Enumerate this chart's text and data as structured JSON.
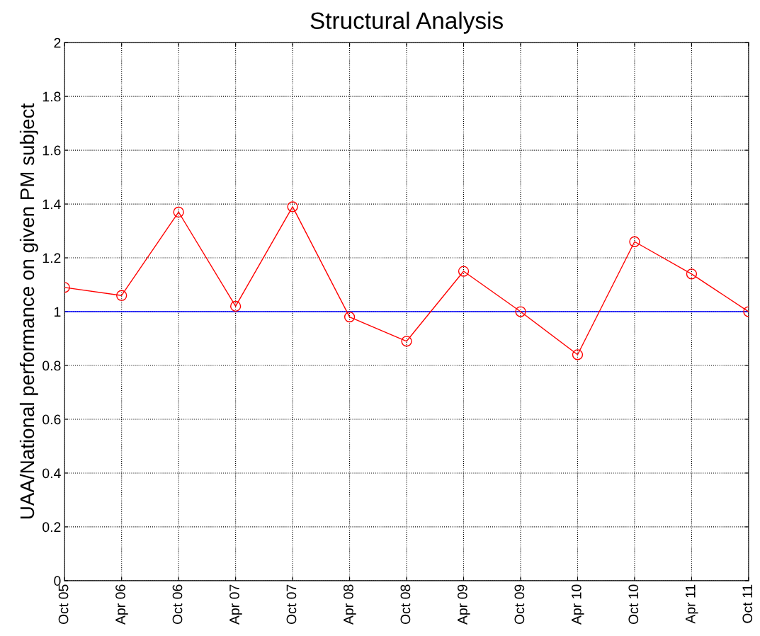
{
  "chart_data": {
    "type": "line",
    "title": "Structural Analysis",
    "ylabel": "UAA/National performance on given PM subject",
    "categories": [
      "Oct 05",
      "Apr 06",
      "Oct 06",
      "Apr 07",
      "Oct 07",
      "Apr 08",
      "Oct 08",
      "Apr 09",
      "Oct 09",
      "Apr 10",
      "Oct 10",
      "Apr 11",
      "Oct 11"
    ],
    "series": [
      {
        "color": "#ff0000",
        "values": [
          1.09,
          1.06,
          1.37,
          1.02,
          1.39,
          0.98,
          0.89,
          1.15,
          1.0,
          0.84,
          1.26,
          1.14,
          1.0
        ]
      }
    ],
    "ref_lines": [
      {
        "axis": "y",
        "value": 1,
        "color": "#0000ff",
        "line_style": "solid"
      }
    ],
    "ylim": [
      0,
      2
    ],
    "yticks": [
      0,
      0.2,
      0.4,
      0.6,
      0.8,
      1,
      1.2,
      1.4,
      1.6,
      1.8,
      2
    ],
    "grid": true,
    "marker": "circle",
    "line_style": "solid",
    "legend": false
  }
}
